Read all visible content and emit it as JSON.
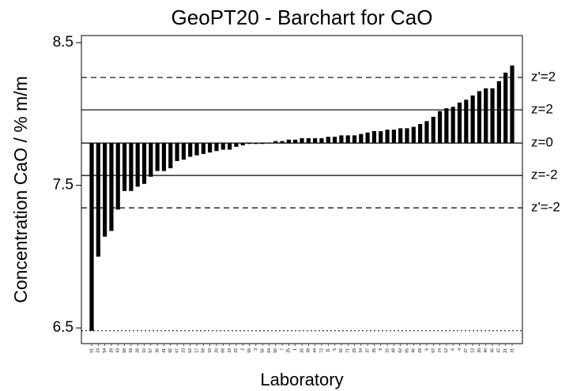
{
  "chart_data": {
    "type": "bar",
    "title": "GeoPT20 - Barchart for CaO",
    "y_label": "Concentration CaO / % m/m",
    "x_label": "Laboratory",
    "categories": [
      "61",
      "24",
      "54",
      "39",
      "43",
      "58",
      "18",
      "28",
      "10",
      "57",
      "36",
      "41",
      "66",
      "67",
      "23",
      "52",
      "17",
      "59",
      "19",
      "20",
      "68",
      "33",
      "22",
      "2",
      "55",
      "3",
      "56",
      "64",
      "50",
      "7",
      "25",
      "1",
      "26",
      "38",
      "44",
      "72",
      "11",
      "5",
      "16",
      "71",
      "29",
      "34",
      "37",
      "35",
      "9",
      "15",
      "49",
      "62",
      "65",
      "46",
      "69",
      "6",
      "63",
      "74",
      "12",
      "8",
      "4",
      "27",
      "13",
      "30",
      "40",
      "45",
      "47",
      "21",
      "31"
    ],
    "values": [
      6.48,
      7.0,
      7.14,
      7.18,
      7.33,
      7.46,
      7.46,
      7.49,
      7.51,
      7.56,
      7.6,
      7.6,
      7.62,
      7.67,
      7.68,
      7.7,
      7.71,
      7.72,
      7.73,
      7.74,
      7.75,
      7.75,
      7.77,
      7.78,
      7.79,
      7.79,
      7.79,
      7.8,
      7.81,
      7.81,
      7.82,
      7.82,
      7.83,
      7.83,
      7.83,
      7.83,
      7.84,
      7.84,
      7.85,
      7.85,
      7.85,
      7.86,
      7.87,
      7.88,
      7.88,
      7.89,
      7.89,
      7.9,
      7.9,
      7.91,
      7.93,
      7.95,
      7.98,
      8.02,
      8.04,
      8.05,
      8.08,
      8.1,
      8.13,
      8.16,
      8.18,
      8.18,
      8.23,
      8.29,
      8.34
    ],
    "color": "#000000",
    "ylim": [
      6.39,
      8.55
    ],
    "yticks": [
      6.5,
      7.5,
      8.5
    ],
    "reference_lines": [
      {
        "label": "z'=2",
        "value": 8.256,
        "style": "dashed"
      },
      {
        "label": "z=2",
        "value": 8.029,
        "style": "solid"
      },
      {
        "label": "z=0",
        "value": 7.796,
        "style": "solid"
      },
      {
        "label": "z=-2",
        "value": 7.569,
        "style": "solid"
      },
      {
        "label": "z'=-2",
        "value": 7.342,
        "style": "dashed"
      }
    ]
  }
}
